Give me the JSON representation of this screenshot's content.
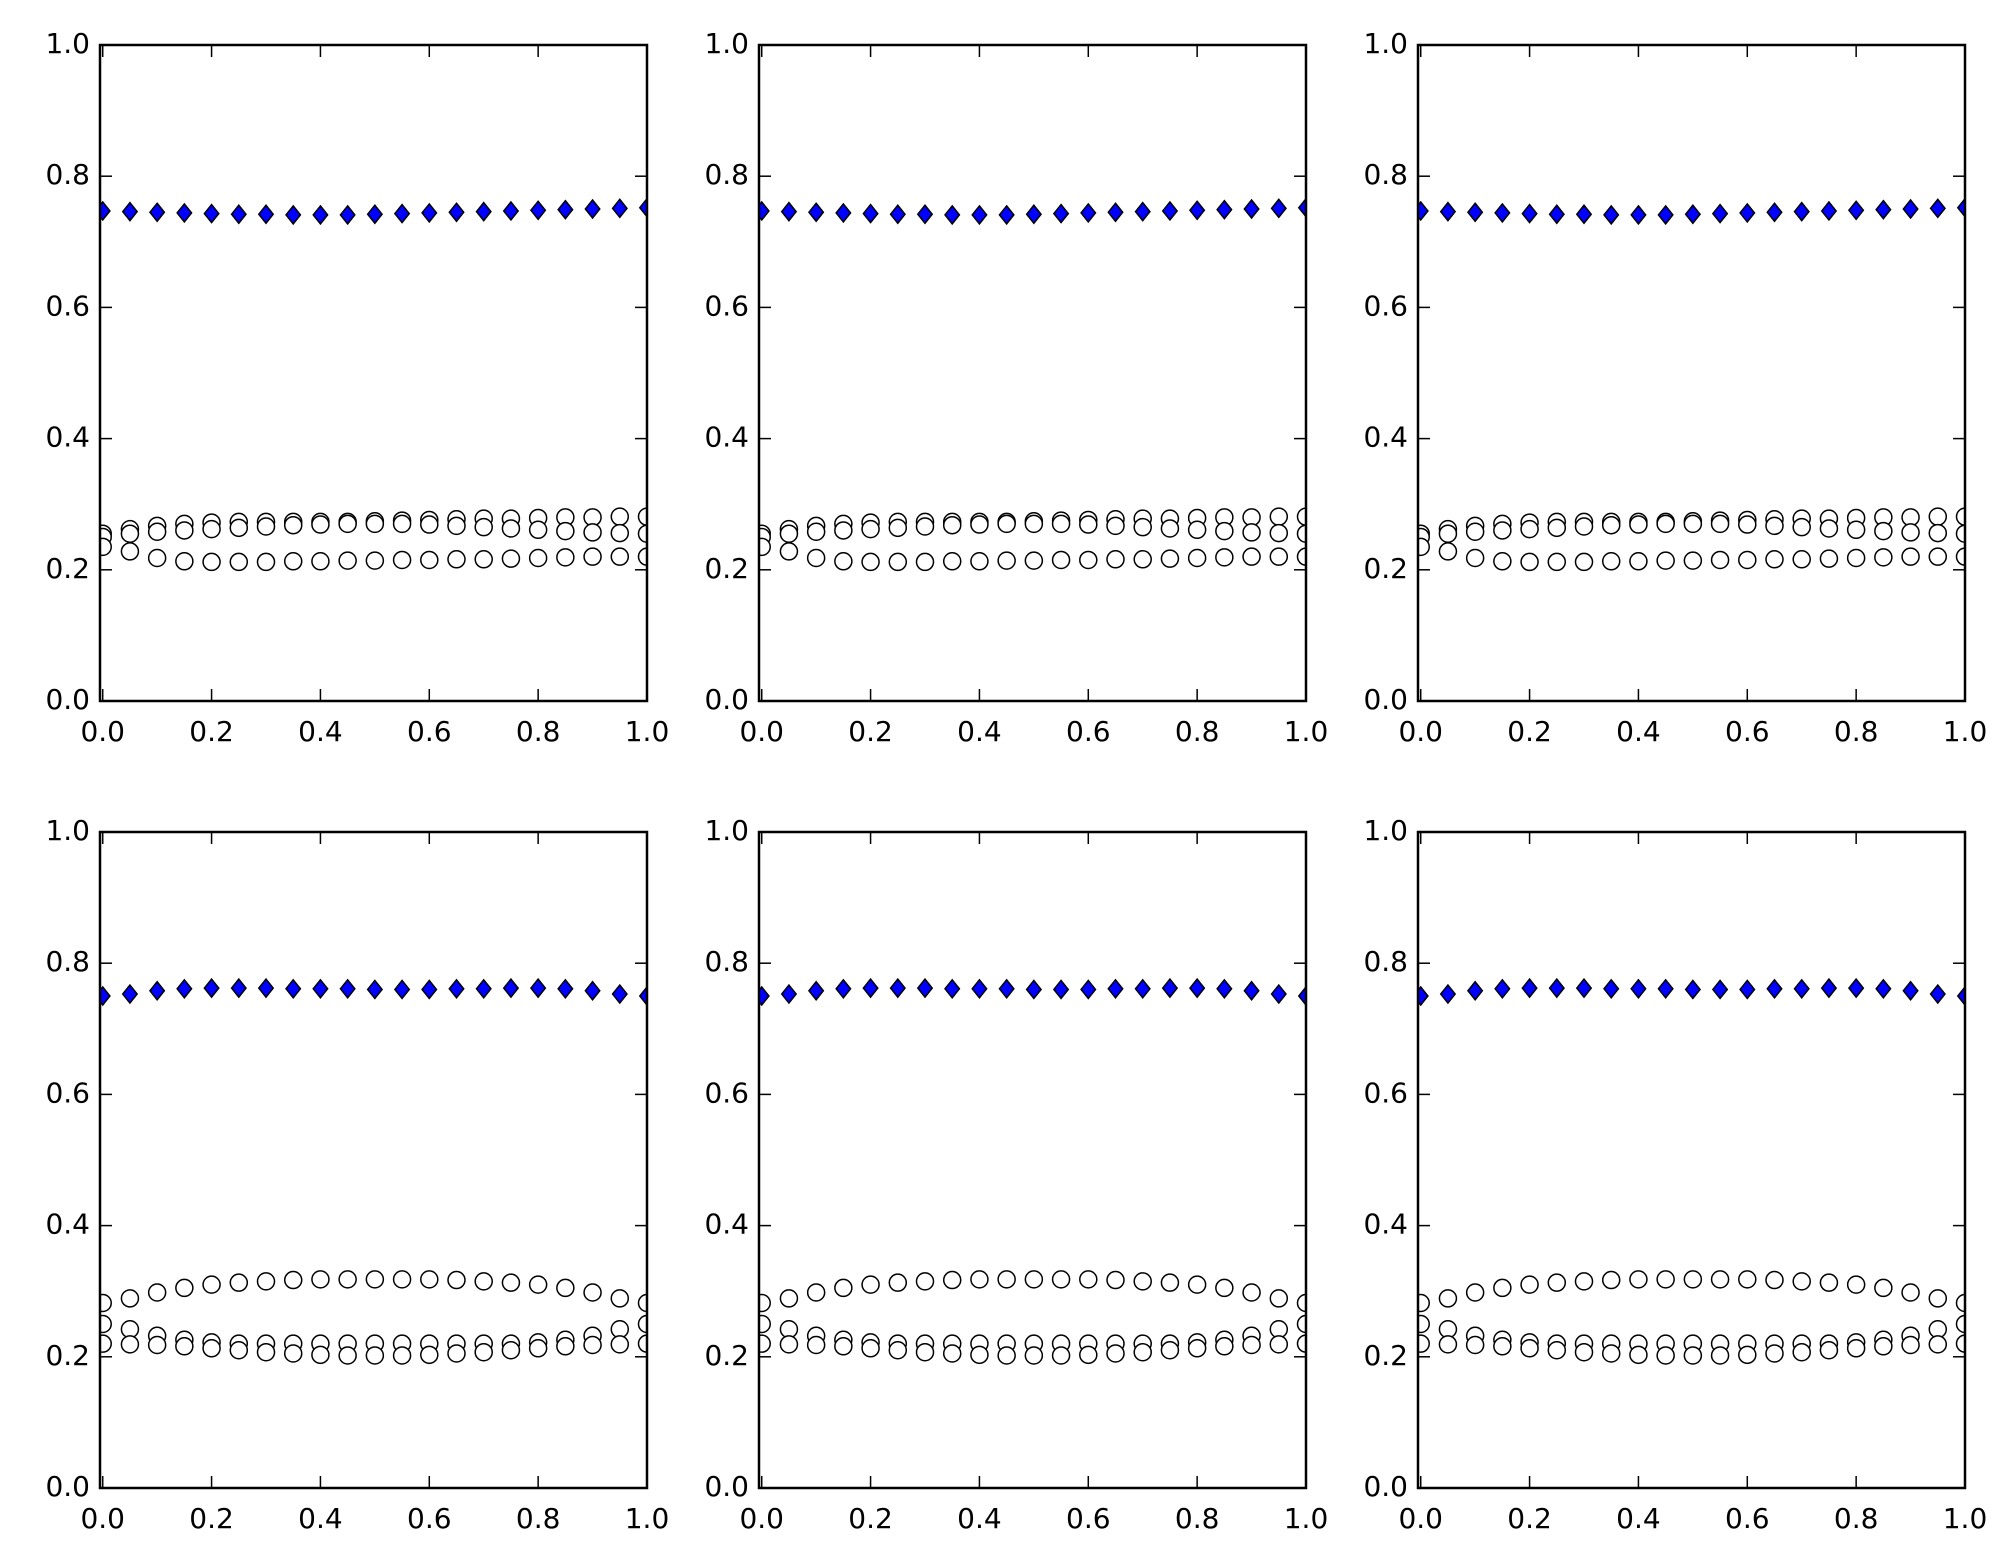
{
  "chart_data": [
    {
      "type": "scatter",
      "x": [
        0,
        0.05,
        0.1,
        0.15,
        0.2,
        0.25,
        0.3,
        0.35,
        0.4,
        0.45,
        0.5,
        0.55,
        0.6,
        0.65,
        0.7,
        0.75,
        0.8,
        0.85,
        0.9,
        0.95,
        1.0
      ],
      "series": [
        {
          "color": "#0000ff",
          "marker": "diamond",
          "values": [
            0.747,
            0.746,
            0.745,
            0.744,
            0.743,
            0.742,
            0.742,
            0.741,
            0.741,
            0.741,
            0.742,
            0.743,
            0.744,
            0.745,
            0.746,
            0.747,
            0.748,
            0.749,
            0.75,
            0.751,
            0.752
          ]
        },
        {
          "color": "#ffffff",
          "marker": "circle",
          "values": [
            0.255,
            0.262,
            0.267,
            0.27,
            0.272,
            0.273,
            0.273,
            0.273,
            0.273,
            0.273,
            0.274,
            0.275,
            0.276,
            0.277,
            0.278,
            0.278,
            0.279,
            0.28,
            0.28,
            0.281,
            0.281
          ]
        },
        {
          "color": "#ffffff",
          "marker": "circle",
          "values": [
            0.25,
            0.255,
            0.258,
            0.26,
            0.262,
            0.264,
            0.266,
            0.268,
            0.269,
            0.27,
            0.27,
            0.27,
            0.269,
            0.267,
            0.265,
            0.263,
            0.261,
            0.259,
            0.257,
            0.256,
            0.255
          ]
        },
        {
          "color": "#ffffff",
          "marker": "circle",
          "values": [
            0.235,
            0.228,
            0.218,
            0.213,
            0.212,
            0.212,
            0.212,
            0.213,
            0.213,
            0.214,
            0.214,
            0.215,
            0.215,
            0.216,
            0.216,
            0.217,
            0.218,
            0.219,
            0.22,
            0.22,
            0.22
          ]
        }
      ],
      "xlim": [
        -0.005,
        1
      ],
      "ylim": [
        0,
        1
      ],
      "xticks": [
        {
          "value": 0,
          "label": "0.0"
        },
        0.2,
        0.4,
        0.6,
        0.8,
        {
          "value": 1,
          "label": "1.0"
        }
      ],
      "yticks": [
        {
          "value": 0,
          "label": "0.0"
        },
        0.2,
        0.4,
        0.6,
        0.8,
        {
          "value": 1,
          "label": "1.0"
        }
      ]
    },
    {
      "type": "scatter",
      "x": [
        0,
        0.05,
        0.1,
        0.15,
        0.2,
        0.25,
        0.3,
        0.35,
        0.4,
        0.45,
        0.5,
        0.55,
        0.6,
        0.65,
        0.7,
        0.75,
        0.8,
        0.85,
        0.9,
        0.95,
        1.0
      ],
      "series": [
        {
          "color": "#0000ff",
          "marker": "diamond",
          "values": [
            0.747,
            0.746,
            0.745,
            0.744,
            0.743,
            0.742,
            0.742,
            0.741,
            0.741,
            0.741,
            0.742,
            0.743,
            0.744,
            0.745,
            0.746,
            0.747,
            0.748,
            0.749,
            0.75,
            0.751,
            0.752
          ]
        },
        {
          "color": "#ffffff",
          "marker": "circle",
          "values": [
            0.255,
            0.262,
            0.267,
            0.27,
            0.272,
            0.273,
            0.273,
            0.273,
            0.273,
            0.273,
            0.274,
            0.275,
            0.276,
            0.277,
            0.278,
            0.278,
            0.279,
            0.28,
            0.28,
            0.281,
            0.281
          ]
        },
        {
          "color": "#ffffff",
          "marker": "circle",
          "values": [
            0.25,
            0.255,
            0.258,
            0.26,
            0.262,
            0.264,
            0.266,
            0.268,
            0.269,
            0.27,
            0.27,
            0.27,
            0.269,
            0.267,
            0.265,
            0.263,
            0.261,
            0.259,
            0.257,
            0.256,
            0.255
          ]
        },
        {
          "color": "#ffffff",
          "marker": "circle",
          "values": [
            0.235,
            0.228,
            0.218,
            0.213,
            0.212,
            0.212,
            0.212,
            0.213,
            0.213,
            0.214,
            0.214,
            0.215,
            0.215,
            0.216,
            0.216,
            0.217,
            0.218,
            0.219,
            0.22,
            0.22,
            0.22
          ]
        }
      ],
      "xlim": [
        -0.005,
        1
      ],
      "ylim": [
        0,
        1
      ],
      "xticks": [
        {
          "value": 0,
          "label": "0.0"
        },
        0.2,
        0.4,
        0.6,
        0.8,
        {
          "value": 1,
          "label": "1.0"
        }
      ],
      "yticks": [
        {
          "value": 0,
          "label": "0.0"
        },
        0.2,
        0.4,
        0.6,
        0.8,
        {
          "value": 1,
          "label": "1.0"
        }
      ]
    },
    {
      "type": "scatter",
      "x": [
        0,
        0.05,
        0.1,
        0.15,
        0.2,
        0.25,
        0.3,
        0.35,
        0.4,
        0.45,
        0.5,
        0.55,
        0.6,
        0.65,
        0.7,
        0.75,
        0.8,
        0.85,
        0.9,
        0.95,
        1.0
      ],
      "series": [
        {
          "color": "#0000ff",
          "marker": "diamond",
          "values": [
            0.747,
            0.746,
            0.745,
            0.744,
            0.743,
            0.742,
            0.742,
            0.741,
            0.741,
            0.741,
            0.742,
            0.743,
            0.744,
            0.745,
            0.746,
            0.747,
            0.748,
            0.749,
            0.75,
            0.751,
            0.752
          ]
        },
        {
          "color": "#ffffff",
          "marker": "circle",
          "values": [
            0.255,
            0.262,
            0.267,
            0.27,
            0.272,
            0.273,
            0.273,
            0.273,
            0.273,
            0.273,
            0.274,
            0.275,
            0.276,
            0.277,
            0.278,
            0.278,
            0.279,
            0.28,
            0.28,
            0.281,
            0.281
          ]
        },
        {
          "color": "#ffffff",
          "marker": "circle",
          "values": [
            0.25,
            0.255,
            0.258,
            0.26,
            0.262,
            0.264,
            0.266,
            0.268,
            0.269,
            0.27,
            0.27,
            0.27,
            0.269,
            0.267,
            0.265,
            0.263,
            0.261,
            0.259,
            0.257,
            0.256,
            0.255
          ]
        },
        {
          "color": "#ffffff",
          "marker": "circle",
          "values": [
            0.235,
            0.228,
            0.218,
            0.213,
            0.212,
            0.212,
            0.212,
            0.213,
            0.213,
            0.214,
            0.214,
            0.215,
            0.215,
            0.216,
            0.216,
            0.217,
            0.218,
            0.219,
            0.22,
            0.22,
            0.22
          ]
        }
      ],
      "xlim": [
        -0.005,
        1
      ],
      "ylim": [
        0,
        1
      ],
      "xticks": [
        {
          "value": 0,
          "label": "0.0"
        },
        0.2,
        0.4,
        0.6,
        0.8,
        {
          "value": 1,
          "label": "1.0"
        }
      ],
      "yticks": [
        {
          "value": 0,
          "label": "0.0"
        },
        0.2,
        0.4,
        0.6,
        0.8,
        {
          "value": 1,
          "label": "1.0"
        }
      ]
    },
    {
      "type": "scatter",
      "x": [
        0,
        0.05,
        0.1,
        0.15,
        0.2,
        0.25,
        0.3,
        0.35,
        0.4,
        0.45,
        0.5,
        0.55,
        0.6,
        0.65,
        0.7,
        0.75,
        0.8,
        0.85,
        0.9,
        0.95,
        1.0
      ],
      "series": [
        {
          "color": "#0000ff",
          "marker": "diamond",
          "values": [
            0.75,
            0.753,
            0.758,
            0.761,
            0.762,
            0.762,
            0.762,
            0.761,
            0.761,
            0.761,
            0.76,
            0.76,
            0.76,
            0.761,
            0.761,
            0.762,
            0.762,
            0.761,
            0.758,
            0.753,
            0.75
          ]
        },
        {
          "color": "#ffffff",
          "marker": "circle",
          "values": [
            0.282,
            0.289,
            0.298,
            0.305,
            0.31,
            0.313,
            0.315,
            0.317,
            0.318,
            0.318,
            0.318,
            0.318,
            0.318,
            0.317,
            0.315,
            0.313,
            0.31,
            0.305,
            0.298,
            0.289,
            0.282
          ]
        },
        {
          "color": "#ffffff",
          "marker": "circle",
          "values": [
            0.25,
            0.242,
            0.232,
            0.226,
            0.222,
            0.22,
            0.22,
            0.22,
            0.22,
            0.22,
            0.22,
            0.22,
            0.22,
            0.22,
            0.22,
            0.22,
            0.222,
            0.226,
            0.232,
            0.242,
            0.25
          ]
        },
        {
          "color": "#ffffff",
          "marker": "circle",
          "values": [
            0.22,
            0.219,
            0.218,
            0.216,
            0.213,
            0.21,
            0.207,
            0.205,
            0.203,
            0.202,
            0.202,
            0.202,
            0.203,
            0.205,
            0.207,
            0.21,
            0.213,
            0.216,
            0.218,
            0.219,
            0.22
          ]
        }
      ],
      "xlim": [
        -0.005,
        1
      ],
      "ylim": [
        0,
        1
      ],
      "xticks": [
        {
          "value": 0,
          "label": "0.0"
        },
        0.2,
        0.4,
        0.6,
        0.8,
        {
          "value": 1,
          "label": "1.0"
        }
      ],
      "yticks": [
        {
          "value": 0,
          "label": "0.0"
        },
        0.2,
        0.4,
        0.6,
        0.8,
        {
          "value": 1,
          "label": "1.0"
        }
      ]
    },
    {
      "type": "scatter",
      "x": [
        0,
        0.05,
        0.1,
        0.15,
        0.2,
        0.25,
        0.3,
        0.35,
        0.4,
        0.45,
        0.5,
        0.55,
        0.6,
        0.65,
        0.7,
        0.75,
        0.8,
        0.85,
        0.9,
        0.95,
        1.0
      ],
      "series": [
        {
          "color": "#0000ff",
          "marker": "diamond",
          "values": [
            0.75,
            0.753,
            0.758,
            0.761,
            0.762,
            0.762,
            0.762,
            0.761,
            0.761,
            0.761,
            0.76,
            0.76,
            0.76,
            0.761,
            0.761,
            0.762,
            0.762,
            0.761,
            0.758,
            0.753,
            0.75
          ]
        },
        {
          "color": "#ffffff",
          "marker": "circle",
          "values": [
            0.282,
            0.289,
            0.298,
            0.305,
            0.31,
            0.313,
            0.315,
            0.317,
            0.318,
            0.318,
            0.318,
            0.318,
            0.318,
            0.317,
            0.315,
            0.313,
            0.31,
            0.305,
            0.298,
            0.289,
            0.282
          ]
        },
        {
          "color": "#ffffff",
          "marker": "circle",
          "values": [
            0.25,
            0.242,
            0.232,
            0.226,
            0.222,
            0.22,
            0.22,
            0.22,
            0.22,
            0.22,
            0.22,
            0.22,
            0.22,
            0.22,
            0.22,
            0.22,
            0.222,
            0.226,
            0.232,
            0.242,
            0.25
          ]
        },
        {
          "color": "#ffffff",
          "marker": "circle",
          "values": [
            0.22,
            0.219,
            0.218,
            0.216,
            0.213,
            0.21,
            0.207,
            0.205,
            0.203,
            0.202,
            0.202,
            0.202,
            0.203,
            0.205,
            0.207,
            0.21,
            0.213,
            0.216,
            0.218,
            0.219,
            0.22
          ]
        }
      ],
      "xlim": [
        -0.005,
        1
      ],
      "ylim": [
        0,
        1
      ],
      "xticks": [
        {
          "value": 0,
          "label": "0.0"
        },
        0.2,
        0.4,
        0.6,
        0.8,
        {
          "value": 1,
          "label": "1.0"
        }
      ],
      "yticks": [
        {
          "value": 0,
          "label": "0.0"
        },
        0.2,
        0.4,
        0.6,
        0.8,
        {
          "value": 1,
          "label": "1.0"
        }
      ]
    },
    {
      "type": "scatter",
      "x": [
        0,
        0.05,
        0.1,
        0.15,
        0.2,
        0.25,
        0.3,
        0.35,
        0.4,
        0.45,
        0.5,
        0.55,
        0.6,
        0.65,
        0.7,
        0.75,
        0.8,
        0.85,
        0.9,
        0.95,
        1.0
      ],
      "series": [
        {
          "color": "#0000ff",
          "marker": "diamond",
          "values": [
            0.75,
            0.753,
            0.758,
            0.761,
            0.762,
            0.762,
            0.762,
            0.761,
            0.761,
            0.761,
            0.76,
            0.76,
            0.76,
            0.761,
            0.761,
            0.762,
            0.762,
            0.761,
            0.758,
            0.753,
            0.75
          ]
        },
        {
          "color": "#ffffff",
          "marker": "circle",
          "values": [
            0.282,
            0.289,
            0.298,
            0.305,
            0.31,
            0.313,
            0.315,
            0.317,
            0.318,
            0.318,
            0.318,
            0.318,
            0.318,
            0.317,
            0.315,
            0.313,
            0.31,
            0.305,
            0.298,
            0.289,
            0.282
          ]
        },
        {
          "color": "#ffffff",
          "marker": "circle",
          "values": [
            0.25,
            0.242,
            0.232,
            0.226,
            0.222,
            0.22,
            0.22,
            0.22,
            0.22,
            0.22,
            0.22,
            0.22,
            0.22,
            0.22,
            0.22,
            0.22,
            0.222,
            0.226,
            0.232,
            0.242,
            0.25
          ]
        },
        {
          "color": "#ffffff",
          "marker": "circle",
          "values": [
            0.22,
            0.219,
            0.218,
            0.216,
            0.213,
            0.21,
            0.207,
            0.205,
            0.203,
            0.202,
            0.202,
            0.202,
            0.203,
            0.205,
            0.207,
            0.21,
            0.213,
            0.216,
            0.218,
            0.219,
            0.22
          ]
        }
      ],
      "xlim": [
        -0.005,
        1
      ],
      "ylim": [
        0,
        1
      ],
      "xticks": [
        {
          "value": 0,
          "label": "0.0"
        },
        0.2,
        0.4,
        0.6,
        0.8,
        {
          "value": 1,
          "label": "1.0"
        }
      ],
      "yticks": [
        {
          "value": 0,
          "label": "0.0"
        },
        0.2,
        0.4,
        0.6,
        0.8,
        {
          "value": 1,
          "label": "1.0"
        }
      ]
    }
  ]
}
